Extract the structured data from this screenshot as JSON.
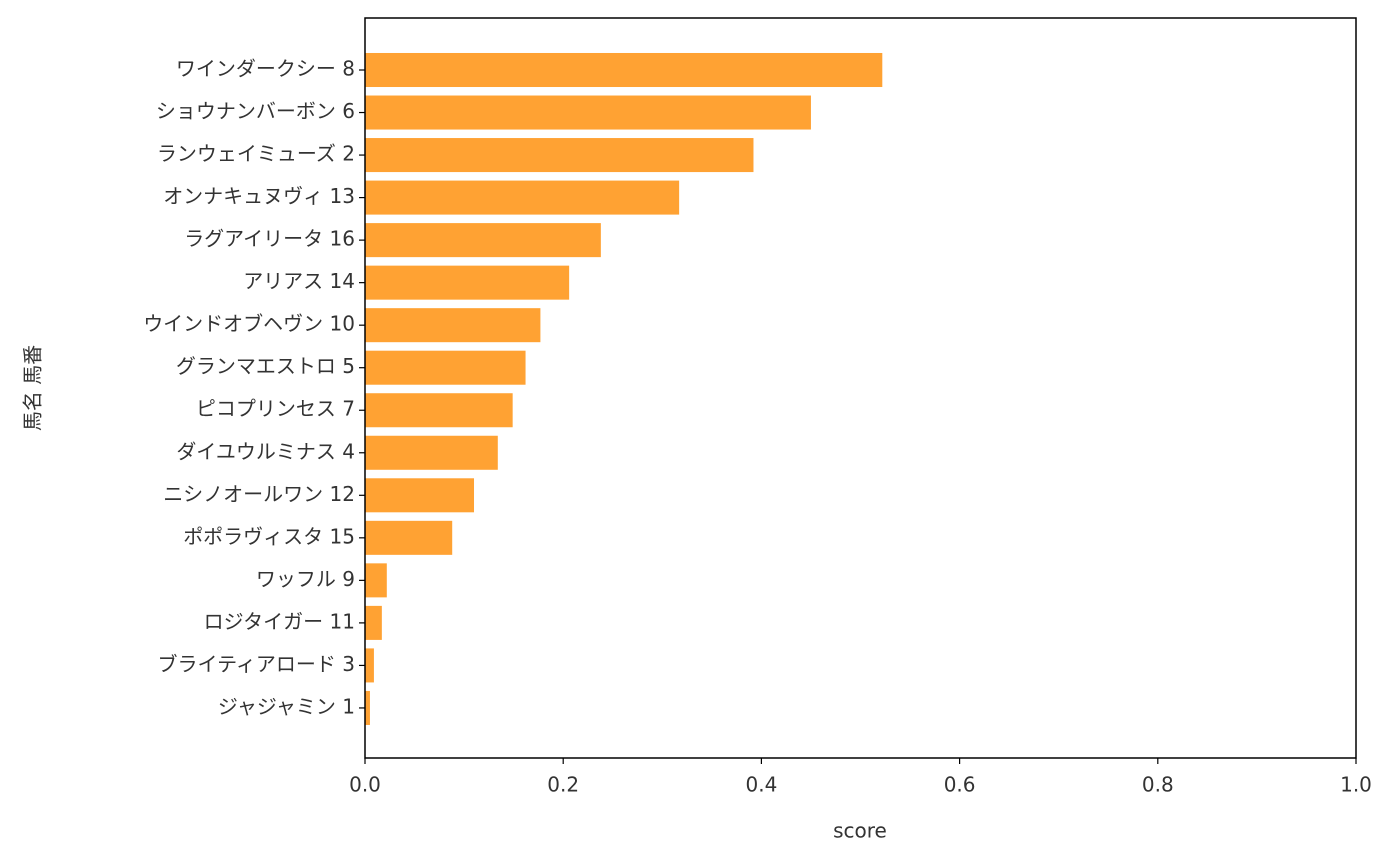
{
  "chart_data": {
    "type": "barh",
    "categories": [
      "ワインダークシー 8",
      "ショウナンバーボン 6",
      "ランウェイミューズ 2",
      "オンナキュヌヴィ 13",
      "ラグアイリータ 16",
      "アリアス 14",
      "ウインドオブヘヴン 10",
      "グランマエストロ 5",
      "ピコプリンセス 7",
      "ダイユウルミナス 4",
      "ニシノオールワン 12",
      "ポポラヴィスタ 15",
      "ワッフル 9",
      "ロジタイガー 11",
      "ブライティアロード 3",
      "ジャジャミン 1"
    ],
    "values": [
      0.522,
      0.45,
      0.392,
      0.317,
      0.238,
      0.206,
      0.177,
      0.162,
      0.149,
      0.134,
      0.11,
      0.088,
      0.022,
      0.017,
      0.009,
      0.005
    ],
    "color": "#ffa233",
    "xlabel": "score",
    "ylabel": "馬名 馬番",
    "xlim": [
      0,
      1
    ],
    "xticks": [
      {
        "value": 0,
        "label": "0.0"
      },
      {
        "value": 0.2,
        "label": "0.2"
      },
      {
        "value": 0.4,
        "label": "0.4"
      },
      {
        "value": 0.6,
        "label": "0.6"
      },
      {
        "value": 0.8,
        "label": "0.8"
      },
      {
        "value": 1,
        "label": "1.0"
      }
    ],
    "grid": false
  }
}
